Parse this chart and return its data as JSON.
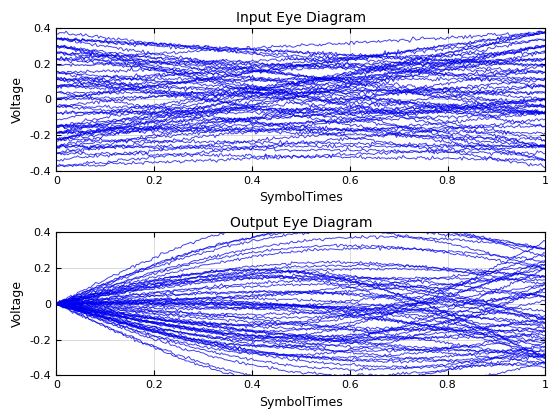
{
  "title1": "Input Eye Diagram",
  "title2": "Output Eye Diagram",
  "xlabel": "SymbolTimes",
  "ylabel": "Voltage",
  "xlim": [
    0,
    1
  ],
  "ylim": [
    -0.4,
    0.4
  ],
  "line_color": "#0000EE",
  "line_alpha": 0.75,
  "line_width": 0.7,
  "n_lines": 63,
  "seed": 42,
  "xticks": [
    0,
    0.2,
    0.4,
    0.6,
    0.8,
    1.0
  ],
  "yticks": [
    -0.4,
    -0.2,
    0.0,
    0.2,
    0.4
  ],
  "figsize": [
    5.6,
    4.2
  ],
  "dpi": 100
}
